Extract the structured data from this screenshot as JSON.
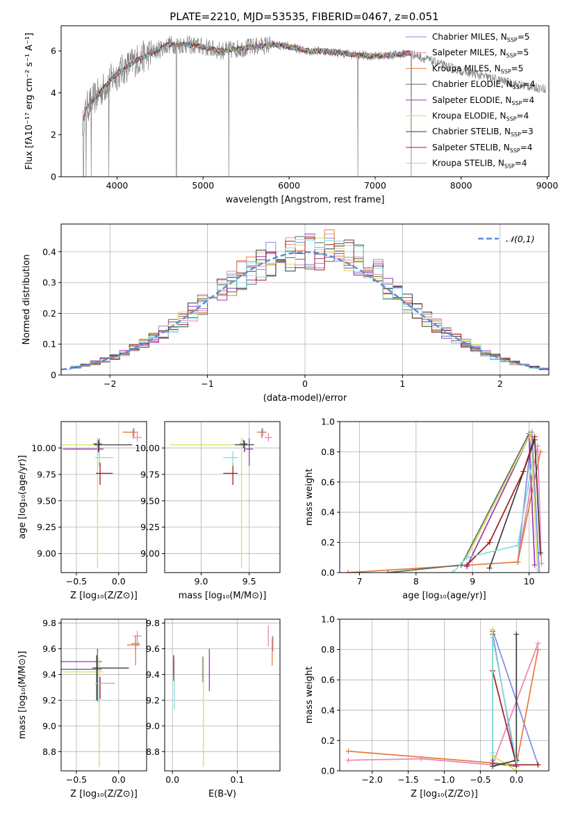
{
  "figure_title": "PLATE=2210, MJD=53535, FIBERID=0467, z=0.051",
  "model_colors": [
    "#7e8be6",
    "#ee82b4",
    "#e67a3c",
    "#5a6e5a",
    "#9b35b8",
    "#d4e05a",
    "#3c3c3c",
    "#a01c1c",
    "#80dce0"
  ],
  "model_names": [
    "Chabrier MILES",
    "Salpeter MILES",
    "Kroupa MILES",
    "Chabrier ELODIE",
    "Salpeter ELODIE",
    "Kroupa ELODIE",
    "Chabrier STELIB",
    "Salpeter STELIB",
    "Kroupa STELIB"
  ],
  "nssp_values": [
    5,
    5,
    5,
    4,
    4,
    4,
    3,
    4,
    4
  ],
  "chart_data": [
    {
      "id": "spectrum",
      "type": "line",
      "xlabel": "wavelength [Angstrom, rest frame]",
      "ylabel": "Flux [fλ10⁻¹⁷ erg cm⁻² s⁻¹ A⁻¹]",
      "xlim": [
        3350,
        9020
      ],
      "ylim": [
        0,
        7.2
      ],
      "xticks": [
        4000,
        5000,
        6000,
        7000,
        8000,
        9000
      ],
      "yticks": [
        0,
        2,
        4,
        6
      ],
      "data_color": "#808080",
      "data_x_range": [
        3600,
        8980
      ],
      "continuum": [
        [
          3600,
          2.6
        ],
        [
          3650,
          3.3
        ],
        [
          3700,
          3.6
        ],
        [
          3800,
          4.0
        ],
        [
          3900,
          4.5
        ],
        [
          4000,
          4.9
        ],
        [
          4100,
          5.2
        ],
        [
          4200,
          5.5
        ],
        [
          4300,
          5.7
        ],
        [
          4400,
          5.9
        ],
        [
          4500,
          6.1
        ],
        [
          4600,
          6.3
        ],
        [
          4700,
          6.3
        ],
        [
          4800,
          6.3
        ],
        [
          4900,
          6.25
        ],
        [
          5000,
          6.2
        ],
        [
          5200,
          6.0
        ],
        [
          5400,
          6.1
        ],
        [
          5600,
          6.2
        ],
        [
          5800,
          6.3
        ],
        [
          6000,
          6.2
        ],
        [
          6200,
          6.0
        ],
        [
          6400,
          6.0
        ],
        [
          6600,
          5.9
        ],
        [
          6800,
          5.8
        ],
        [
          7000,
          5.75
        ],
        [
          7200,
          5.8
        ],
        [
          7400,
          5.9
        ],
        [
          7500,
          5.75
        ],
        [
          7600,
          5.6
        ],
        [
          7800,
          5.3
        ],
        [
          8000,
          5.05
        ],
        [
          8200,
          4.85
        ],
        [
          8400,
          4.65
        ],
        [
          8600,
          4.45
        ],
        [
          8800,
          4.3
        ],
        [
          8980,
          4.2
        ]
      ],
      "data_zero_drops": [
        3610,
        3640,
        3700,
        3905,
        4690,
        5300,
        6800,
        7420
      ],
      "model_x_range": [
        3600,
        7420
      ],
      "legend_position": "upper right"
    },
    {
      "id": "residual-histogram",
      "type": "histogram",
      "xlabel": "(data-model)/error",
      "ylabel": "Normed distribution",
      "xlim": [
        -2.5,
        2.5
      ],
      "ylim": [
        0,
        0.49
      ],
      "xticks": [
        -2,
        -1,
        0,
        1,
        2
      ],
      "yticks": [
        0,
        0.1,
        0.2,
        0.3,
        0.4
      ],
      "bin_edges_start": -2.5,
      "bin_width": 0.1,
      "bin_count": 50,
      "reference_curve": {
        "name": "𝒩(0,1)",
        "mu": 0,
        "sigma": 1,
        "style": "dashed",
        "color": "#5b8bd9"
      },
      "legend_position": "upper right"
    },
    {
      "id": "age-vs-metallicity",
      "type": "errorbar",
      "xlabel": "Z [log₁₀(Z/Z⊙)]",
      "ylabel": "age  [log₁₀(age/yr)]",
      "xlim": [
        -0.68,
        0.33
      ],
      "ylim": [
        8.82,
        10.25
      ],
      "xticks": [
        -0.5,
        0.0
      ],
      "yticks": [
        9.0,
        9.25,
        9.5,
        9.75,
        10.0
      ],
      "points": [
        {
          "x": 0.18,
          "y": 10.15,
          "xerr": [
            0.05,
            0.05
          ],
          "yerr": [
            0.04,
            0.04
          ]
        },
        {
          "x": 0.22,
          "y": 10.1,
          "xerr": [
            0.05,
            0.05
          ],
          "yerr": [
            0.04,
            0.04
          ]
        },
        {
          "x": 0.17,
          "y": 10.15,
          "xerr": [
            0.12,
            0.05
          ],
          "yerr": [
            0.06,
            0.03
          ]
        },
        {
          "x": -0.25,
          "y": 10.04,
          "xerr": [
            0.05,
            0.05
          ],
          "yerr": [
            0.04,
            0.04
          ]
        },
        {
          "x": -0.23,
          "y": 9.99,
          "xerr": [
            0.43,
            0.05
          ],
          "yerr": [
            0.06,
            0.1
          ]
        },
        {
          "x": -0.25,
          "y": 10.03,
          "xerr": [
            0.43,
            0.05
          ],
          "yerr": [
            1.17,
            0.07
          ]
        },
        {
          "x": -0.24,
          "y": 10.03,
          "xerr": [
            0.05,
            0.4
          ],
          "yerr": [
            0.07,
            0.04
          ]
        },
        {
          "x": -0.22,
          "y": 9.76,
          "xerr": [
            0.05,
            0.15
          ],
          "yerr": [
            0.11,
            0.1
          ]
        },
        {
          "x": -0.23,
          "y": 9.91,
          "xerr": [
            0.05,
            0.17
          ],
          "yerr": [
            0.08,
            0.06
          ]
        }
      ]
    },
    {
      "id": "age-vs-mass",
      "type": "errorbar",
      "xlabel": "mass [log₁₀(M/M⊙)]",
      "ylabel": "",
      "xlim": [
        8.62,
        9.82
      ],
      "ylim": [
        8.82,
        10.25
      ],
      "xticks": [
        9.0,
        9.5
      ],
      "yticks": [
        9.0,
        9.25,
        9.5,
        9.75,
        10.0
      ],
      "points": [
        {
          "x": 9.64,
          "y": 10.15,
          "xerr": [
            0.04,
            0.04
          ],
          "yerr": [
            0.04,
            0.04
          ]
        },
        {
          "x": 9.7,
          "y": 10.1,
          "xerr": [
            0.04,
            0.04
          ],
          "yerr": [
            0.04,
            0.04
          ]
        },
        {
          "x": 9.63,
          "y": 10.15,
          "xerr": [
            0.05,
            0.05
          ],
          "yerr": [
            0.06,
            0.03
          ]
        },
        {
          "x": 9.44,
          "y": 10.04,
          "xerr": [
            0.04,
            0.04
          ],
          "yerr": [
            0.04,
            0.04
          ]
        },
        {
          "x": 9.5,
          "y": 9.99,
          "xerr": [
            0.04,
            0.04
          ],
          "yerr": [
            0.16,
            0.1
          ]
        },
        {
          "x": 9.42,
          "y": 10.03,
          "xerr": [
            0.75,
            0.05
          ],
          "yerr": [
            1.17,
            0.07
          ]
        },
        {
          "x": 9.45,
          "y": 10.03,
          "xerr": [
            0.1,
            0.1
          ],
          "yerr": [
            0.07,
            0.04
          ]
        },
        {
          "x": 9.33,
          "y": 9.76,
          "xerr": [
            0.1,
            0.05
          ],
          "yerr": [
            0.11,
            0.1
          ]
        },
        {
          "x": 9.33,
          "y": 9.91,
          "xerr": [
            0.1,
            0.05
          ],
          "yerr": [
            0.08,
            0.06
          ]
        }
      ]
    },
    {
      "id": "mass-weight-vs-age",
      "type": "line",
      "xlabel": "age  [log₁₀(age/yr)]",
      "ylabel": "mass weight",
      "xlim": [
        6.65,
        10.35
      ],
      "ylim": [
        0,
        1.0
      ],
      "xticks": [
        7,
        8,
        9,
        10
      ],
      "yticks": [
        0,
        0.2,
        0.4,
        0.6,
        0.8,
        1.0
      ],
      "series": [
        {
          "x": [
            9.8,
            10.05,
            10.18
          ],
          "y": [
            0.07,
            0.93,
            0.0
          ]
        },
        {
          "x": [
            9.8,
            10.15,
            10.22
          ],
          "y": [
            0.07,
            0.84,
            0.06
          ]
        },
        {
          "x": [
            6.8,
            9.8,
            10.2
          ],
          "y": [
            0.0,
            0.07,
            0.8
          ]
        },
        {
          "x": [
            7.5,
            8.8,
            10.0
          ],
          "y": [
            0.0,
            0.05,
            0.92
          ]
        },
        {
          "x": [
            8.9,
            10.0,
            10.1
          ],
          "y": [
            0.04,
            0.9,
            0.05
          ]
        },
        {
          "x": [
            8.9,
            10.03,
            10.15
          ],
          "y": [
            0.1,
            0.92,
            0.02
          ]
        },
        {
          "x": [
            9.3,
            10.1,
            10.2
          ],
          "y": [
            0.03,
            0.88,
            0.13
          ]
        },
        {
          "x": [
            8.9,
            9.3,
            9.9,
            10.1
          ],
          "y": [
            0.05,
            0.2,
            0.67,
            0.9
          ]
        },
        {
          "x": [
            8.65,
            8.9,
            9.8,
            10.05
          ],
          "y": [
            0.0,
            0.1,
            0.18,
            0.72
          ]
        }
      ]
    },
    {
      "id": "mass-vs-metallicity",
      "type": "errorbar",
      "xlabel": "Z [log₁₀(Z/Z⊙)]",
      "ylabel": "mass [log₁₀(M/M⊙)]",
      "xlim": [
        -0.68,
        0.33
      ],
      "ylim": [
        8.65,
        9.83
      ],
      "xticks": [
        -0.5,
        0.0
      ],
      "yticks": [
        8.8,
        9.0,
        9.2,
        9.4,
        9.6,
        9.8
      ],
      "points": [
        {
          "x": 0.2,
          "y": 9.64,
          "xerr": [
            0.05,
            0.05
          ],
          "yerr": [
            0.06,
            0.06
          ]
        },
        {
          "x": 0.22,
          "y": 9.7,
          "xerr": [
            0.05,
            0.05
          ],
          "yerr": [
            0.08,
            0.04
          ]
        },
        {
          "x": 0.2,
          "y": 9.63,
          "xerr": [
            0.1,
            0.05
          ],
          "yerr": [
            0.16,
            0.06
          ]
        },
        {
          "x": -0.25,
          "y": 9.44,
          "xerr": [
            0.43,
            0.05
          ],
          "yerr": [
            0.25,
            0.1
          ]
        },
        {
          "x": -0.25,
          "y": 9.5,
          "xerr": [
            0.43,
            0.05
          ],
          "yerr": [
            0.15,
            0.1
          ]
        },
        {
          "x": -0.23,
          "y": 9.42,
          "xerr": [
            0.43,
            0.05
          ],
          "yerr": [
            0.74,
            0.1
          ]
        },
        {
          "x": -0.26,
          "y": 9.45,
          "xerr": [
            0.05,
            0.38
          ],
          "yerr": [
            0.25,
            0.1
          ]
        },
        {
          "x": -0.22,
          "y": 9.33,
          "xerr": [
            0.05,
            0.17
          ],
          "yerr": [
            0.12,
            0.05
          ]
        },
        {
          "x": -0.23,
          "y": 9.33,
          "xerr": [
            0.05,
            0.17
          ],
          "yerr": [
            0.18,
            0.06
          ]
        }
      ]
    },
    {
      "id": "mass-vs-ebv",
      "type": "errorbar",
      "xlabel": "E(B-V)",
      "ylabel": "",
      "xlim": [
        -0.012,
        0.166
      ],
      "ylim": [
        8.65,
        9.83
      ],
      "xticks": [
        0.0,
        0.1
      ],
      "yticks": [
        8.8,
        9.0,
        9.2,
        9.4,
        9.6,
        9.8
      ],
      "points": [
        {
          "x": 0.155,
          "y": 9.64,
          "xerr": [
            0,
            0
          ],
          "yerr": [
            0.06,
            0.06
          ]
        },
        {
          "x": 0.148,
          "y": 9.7,
          "xerr": [
            0,
            0
          ],
          "yerr": [
            0.08,
            0.08
          ]
        },
        {
          "x": 0.154,
          "y": 9.63,
          "xerr": [
            0,
            0
          ],
          "yerr": [
            0.16,
            0.06
          ]
        },
        {
          "x": 0.047,
          "y": 9.44,
          "xerr": [
            0,
            0
          ],
          "yerr": [
            0.1,
            0.1
          ]
        },
        {
          "x": 0.057,
          "y": 9.5,
          "xerr": [
            0,
            0
          ],
          "yerr": [
            0.23,
            0.1
          ]
        },
        {
          "x": 0.048,
          "y": 9.42,
          "xerr": [
            0,
            0
          ],
          "yerr": [
            0.74,
            0.1
          ]
        },
        {
          "x": 0.002,
          "y": 9.45,
          "xerr": [
            0,
            0
          ],
          "yerr": [
            0.05,
            0.1
          ]
        },
        {
          "x": 0.002,
          "y": 9.4,
          "xerr": [
            0,
            0
          ],
          "yerr": [
            0.05,
            0.12
          ]
        },
        {
          "x": 0.003,
          "y": 9.33,
          "xerr": [
            0,
            0
          ],
          "yerr": [
            0.2,
            0.06
          ]
        }
      ]
    },
    {
      "id": "mass-weight-vs-metallicity",
      "type": "line",
      "xlabel": "Z [log₁₀(Z/Z⊙)]",
      "ylabel": "mass weight",
      "xlim": [
        -2.45,
        0.45
      ],
      "ylim": [
        0,
        1.0
      ],
      "xticks": [
        -2.0,
        -1.5,
        -1.0,
        -0.5,
        0.0
      ],
      "yticks": [
        0,
        0.2,
        0.4,
        0.6,
        0.8,
        1.0
      ],
      "series": [
        {
          "x": [
            -0.33,
            -0.33,
            0.3
          ],
          "y": [
            0.07,
            0.93,
            0.04
          ]
        },
        {
          "x": [
            -2.33,
            -1.32,
            -0.33,
            0.3
          ],
          "y": [
            0.07,
            0.08,
            0.04,
            0.84
          ]
        },
        {
          "x": [
            -2.33,
            0.0,
            0.3
          ],
          "y": [
            0.13,
            0.04,
            0.8
          ]
        },
        {
          "x": [
            -0.33,
            -0.33,
            0.0
          ],
          "y": [
            0.92,
            0.05,
            0.03
          ]
        },
        {
          "x": [
            -0.33,
            0.0,
            0.0
          ],
          "y": [
            0.9,
            0.03,
            0.07
          ]
        },
        {
          "x": [
            -0.33,
            -0.33,
            0.0
          ],
          "y": [
            0.93,
            0.1,
            0.0
          ]
        },
        {
          "x": [
            -0.33,
            0.0,
            0.0
          ],
          "y": [
            0.03,
            0.07,
            0.9
          ]
        },
        {
          "x": [
            -0.33,
            0.0,
            0.3
          ],
          "y": [
            0.66,
            0.04,
            0.04
          ]
        },
        {
          "x": [
            -0.33,
            -0.33,
            0.0
          ],
          "y": [
            0.12,
            0.88,
            0.06
          ]
        }
      ]
    }
  ]
}
